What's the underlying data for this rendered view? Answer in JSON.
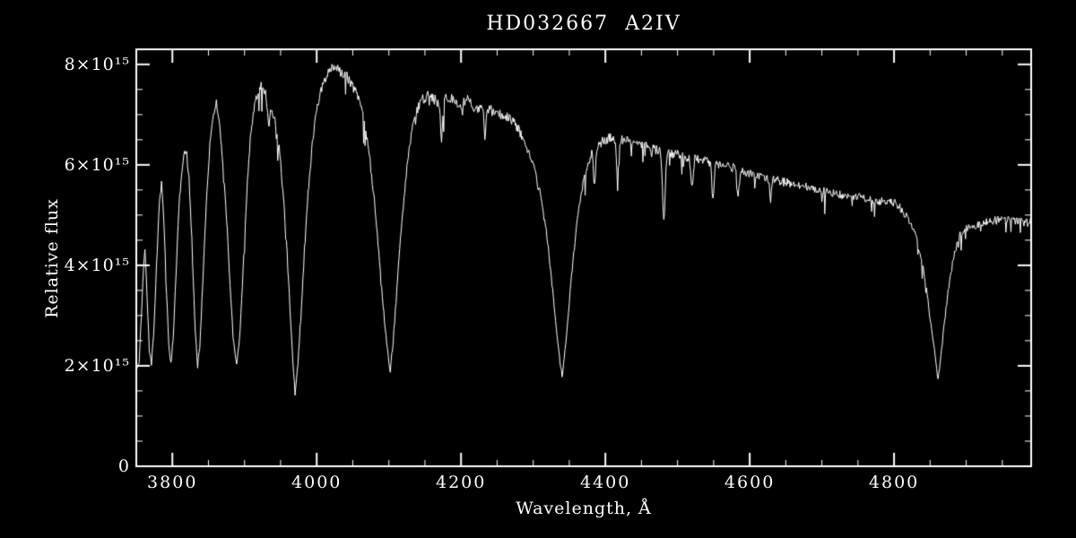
{
  "window": {
    "background_color": "#000000",
    "foreground_color": "#ffffff"
  },
  "chart_data": {
    "type": "line",
    "title": "HD032667  A2IV",
    "xlabel": "Wavelength, Å",
    "ylabel": "Relative flux",
    "xlim": [
      3750,
      4990
    ],
    "ylim": [
      0,
      8.3
    ],
    "y_scale": 1000000000000000.0,
    "y_scale_label": "×10¹⁵",
    "grid": false,
    "legend": false,
    "line_color": "#ffffff",
    "x_minor_tick": 50,
    "y_minor_tick": 0.5,
    "x_ticks": [
      {
        "value": 3800,
        "label": "3800"
      },
      {
        "value": 4000,
        "label": "4000"
      },
      {
        "value": 4200,
        "label": "4200"
      },
      {
        "value": 4400,
        "label": "4400"
      },
      {
        "value": 4600,
        "label": "4600"
      },
      {
        "value": 4800,
        "label": "4800"
      }
    ],
    "y_ticks": [
      {
        "value": 0,
        "label": "0"
      },
      {
        "value": 2,
        "label": "2×10¹⁵"
      },
      {
        "value": 4,
        "label": "4×10¹⁵"
      },
      {
        "value": 6,
        "label": "6×10¹⁵"
      },
      {
        "value": 8,
        "label": "8×10¹⁵"
      }
    ],
    "points_unit": "flux in units of 10^15",
    "points": [
      [
        3750,
        1.85
      ],
      [
        3754,
        2.1
      ],
      [
        3757,
        3.0
      ],
      [
        3760,
        4.0
      ],
      [
        3762,
        4.3
      ],
      [
        3765,
        3.4
      ],
      [
        3768,
        2.3
      ],
      [
        3771,
        2.05
      ],
      [
        3774,
        2.6
      ],
      [
        3778,
        4.0
      ],
      [
        3782,
        5.3
      ],
      [
        3785,
        5.6
      ],
      [
        3788,
        5.0
      ],
      [
        3791,
        3.8
      ],
      [
        3795,
        2.4
      ],
      [
        3798,
        2.05
      ],
      [
        3801,
        2.5
      ],
      [
        3805,
        3.8
      ],
      [
        3810,
        5.4
      ],
      [
        3815,
        6.1
      ],
      [
        3819,
        6.3
      ],
      [
        3823,
        5.8
      ],
      [
        3827,
        4.5
      ],
      [
        3831,
        2.9
      ],
      [
        3835,
        2.0
      ],
      [
        3838,
        2.4
      ],
      [
        3842,
        3.6
      ],
      [
        3847,
        5.2
      ],
      [
        3852,
        6.4
      ],
      [
        3857,
        7.0
      ],
      [
        3861,
        7.2
      ],
      [
        3865,
        6.9
      ],
      [
        3869,
        6.2
      ],
      [
        3874,
        5.2
      ],
      [
        3879,
        3.9
      ],
      [
        3884,
        2.6
      ],
      [
        3889,
        2.0
      ],
      [
        3894,
        2.7
      ],
      [
        3899,
        4.2
      ],
      [
        3904,
        5.7
      ],
      [
        3909,
        6.7
      ],
      [
        3914,
        7.2
      ],
      [
        3919,
        7.5
      ],
      [
        3924,
        7.6
      ],
      [
        3928,
        7.5
      ],
      [
        3931,
        7.2
      ],
      [
        3934,
        6.8
      ],
      [
        3937,
        7.1
      ],
      [
        3941,
        7.0
      ],
      [
        3945,
        6.7
      ],
      [
        3949,
        6.2
      ],
      [
        3953,
        5.5
      ],
      [
        3958,
        4.5
      ],
      [
        3962,
        3.4
      ],
      [
        3966,
        2.3
      ],
      [
        3970,
        1.45
      ],
      [
        3974,
        2.0
      ],
      [
        3978,
        3.0
      ],
      [
        3983,
        4.3
      ],
      [
        3988,
        5.4
      ],
      [
        3994,
        6.4
      ],
      [
        4000,
        7.1
      ],
      [
        4008,
        7.6
      ],
      [
        4016,
        7.85
      ],
      [
        4024,
        7.95
      ],
      [
        4033,
        7.85
      ],
      [
        4042,
        7.75
      ],
      [
        4050,
        7.6
      ],
      [
        4058,
        7.3
      ],
      [
        4065,
        6.9
      ],
      [
        4072,
        6.3
      ],
      [
        4079,
        5.4
      ],
      [
        4086,
        4.3
      ],
      [
        4092,
        3.2
      ],
      [
        4097,
        2.4
      ],
      [
        4102,
        1.9
      ],
      [
        4106,
        2.5
      ],
      [
        4111,
        3.5
      ],
      [
        4117,
        4.7
      ],
      [
        4124,
        5.8
      ],
      [
        4131,
        6.6
      ],
      [
        4139,
        7.1
      ],
      [
        4147,
        7.3
      ],
      [
        4155,
        7.4
      ],
      [
        4163,
        7.3
      ],
      [
        4172,
        7.2
      ],
      [
        4180,
        7.35
      ],
      [
        4190,
        7.3
      ],
      [
        4200,
        7.2
      ],
      [
        4210,
        7.3
      ],
      [
        4220,
        7.1
      ],
      [
        4230,
        7.2
      ],
      [
        4240,
        7.1
      ],
      [
        4250,
        7.0
      ],
      [
        4260,
        7.0
      ],
      [
        4270,
        6.9
      ],
      [
        4280,
        6.7
      ],
      [
        4290,
        6.4
      ],
      [
        4300,
        6.0
      ],
      [
        4310,
        5.4
      ],
      [
        4318,
        4.7
      ],
      [
        4325,
        3.8
      ],
      [
        4331,
        2.9
      ],
      [
        4336,
        2.2
      ],
      [
        4340,
        1.8
      ],
      [
        4344,
        2.3
      ],
      [
        4349,
        3.1
      ],
      [
        4355,
        4.1
      ],
      [
        4362,
        5.0
      ],
      [
        4370,
        5.7
      ],
      [
        4380,
        6.2
      ],
      [
        4390,
        6.4
      ],
      [
        4400,
        6.5
      ],
      [
        4410,
        6.55
      ],
      [
        4420,
        6.5
      ],
      [
        4430,
        6.5
      ],
      [
        4440,
        6.45
      ],
      [
        4455,
        6.4
      ],
      [
        4470,
        6.3
      ],
      [
        4485,
        6.25
      ],
      [
        4500,
        6.2
      ],
      [
        4515,
        6.15
      ],
      [
        4530,
        6.1
      ],
      [
        4545,
        6.05
      ],
      [
        4560,
        6.0
      ],
      [
        4575,
        5.95
      ],
      [
        4590,
        5.85
      ],
      [
        4605,
        5.8
      ],
      [
        4620,
        5.75
      ],
      [
        4635,
        5.7
      ],
      [
        4650,
        5.65
      ],
      [
        4665,
        5.6
      ],
      [
        4680,
        5.55
      ],
      [
        4695,
        5.5
      ],
      [
        4710,
        5.45
      ],
      [
        4725,
        5.4
      ],
      [
        4740,
        5.4
      ],
      [
        4755,
        5.35
      ],
      [
        4770,
        5.3
      ],
      [
        4785,
        5.28
      ],
      [
        4800,
        5.25
      ],
      [
        4808,
        5.15
      ],
      [
        4816,
        5.0
      ],
      [
        4824,
        4.8
      ],
      [
        4832,
        4.5
      ],
      [
        4840,
        4.0
      ],
      [
        4847,
        3.3
      ],
      [
        4853,
        2.6
      ],
      [
        4858,
        2.1
      ],
      [
        4861,
        1.7
      ],
      [
        4865,
        2.2
      ],
      [
        4870,
        2.9
      ],
      [
        4876,
        3.6
      ],
      [
        4883,
        4.2
      ],
      [
        4891,
        4.6
      ],
      [
        4900,
        4.75
      ],
      [
        4912,
        4.8
      ],
      [
        4925,
        4.85
      ],
      [
        4940,
        4.9
      ],
      [
        4955,
        4.92
      ],
      [
        4970,
        4.88
      ],
      [
        4985,
        4.85
      ],
      [
        4995,
        4.9
      ]
    ],
    "narrow_lines": [
      {
        "center": 4173,
        "depth": 0.7,
        "width": 2
      },
      {
        "center": 4233,
        "depth": 0.6,
        "width": 2
      },
      {
        "center": 4385,
        "depth": 0.7,
        "width": 2
      },
      {
        "center": 4417,
        "depth": 0.8,
        "width": 2
      },
      {
        "center": 4481,
        "depth": 1.4,
        "width": 2.5
      },
      {
        "center": 4520,
        "depth": 0.6,
        "width": 2
      },
      {
        "center": 4549,
        "depth": 0.7,
        "width": 2
      },
      {
        "center": 4584,
        "depth": 0.5,
        "width": 2
      },
      {
        "center": 4629,
        "depth": 0.4,
        "width": 2
      }
    ]
  }
}
